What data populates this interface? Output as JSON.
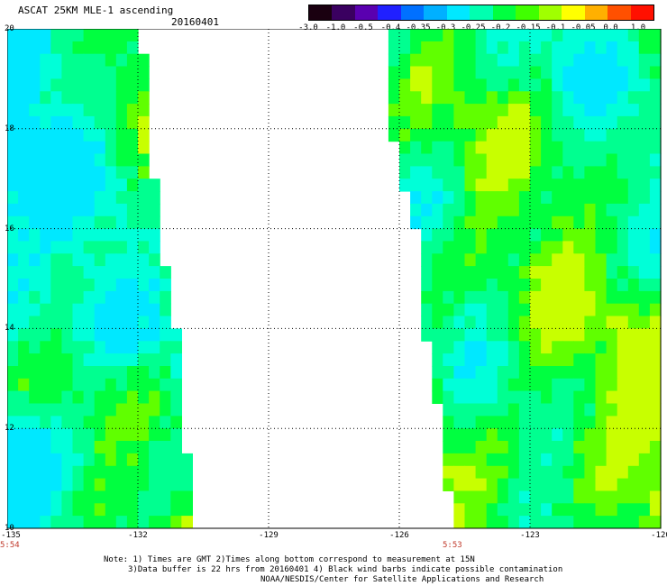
{
  "header": {
    "title": "ASCAT 25KM MLE-1 ascending",
    "date": "20160401"
  },
  "colorbar": {
    "labels": [
      "-3.0",
      "-1.0",
      "-0.5",
      "-0.4",
      "-0.35",
      "-0.3",
      "-0.25",
      "-0.2",
      "-0.15",
      "-0.1",
      "-0.05",
      "0.0",
      "1.0"
    ],
    "colors": [
      "#1a0010",
      "#3a0060",
      "#5a00b0",
      "#2020ff",
      "#0070ff",
      "#00b0ff",
      "#00e8ff",
      "#00ffb0",
      "#00ff40",
      "#40ff00",
      "#a0ff00",
      "#ffff00",
      "#ffb000",
      "#ff5000",
      "#ff1000"
    ]
  },
  "map": {
    "lon_range": [
      -135,
      -120
    ],
    "lat_range": [
      10,
      20
    ],
    "lat_ticks": [
      "20",
      "18",
      "16",
      "14",
      "12",
      "10"
    ],
    "lon_ticks": [
      "-135",
      "-132",
      "-129",
      "-126",
      "-123",
      "-120"
    ],
    "swaths": [
      {
        "time": "5:54",
        "east_edge": [
          [
            20,
            -131.8
          ],
          [
            19,
            -131.7
          ],
          [
            18,
            -131.6
          ],
          [
            17,
            -131.5
          ],
          [
            16,
            -131.4
          ],
          [
            15,
            -131.2
          ],
          [
            14,
            -131.0
          ],
          [
            13,
            -130.9
          ],
          [
            12,
            -130.8
          ],
          [
            11,
            -130.7
          ],
          [
            10,
            -130.5
          ]
        ]
      },
      {
        "time": "5:53",
        "west_edge": [
          [
            20,
            -126.5
          ],
          [
            19,
            -126.4
          ],
          [
            18,
            -126.3
          ],
          [
            17,
            -126.1
          ],
          [
            16,
            -125.7
          ],
          [
            15,
            -125.6
          ],
          [
            14,
            -125.6
          ],
          [
            13,
            -125.3
          ],
          [
            12,
            -125.2
          ],
          [
            11,
            -125.1
          ],
          [
            10,
            -124.8
          ]
        ]
      }
    ]
  },
  "notes": {
    "line1": "Note: 1) Times are GMT 2)Times along bottom correspond to measurement at 15N",
    "line2": "3)Data buffer is 22 hrs from 20160401 4) Black wind barbs indicate possible contamination",
    "line3": "NOAA/NESDIS/Center for Satellite Applications and Research"
  }
}
